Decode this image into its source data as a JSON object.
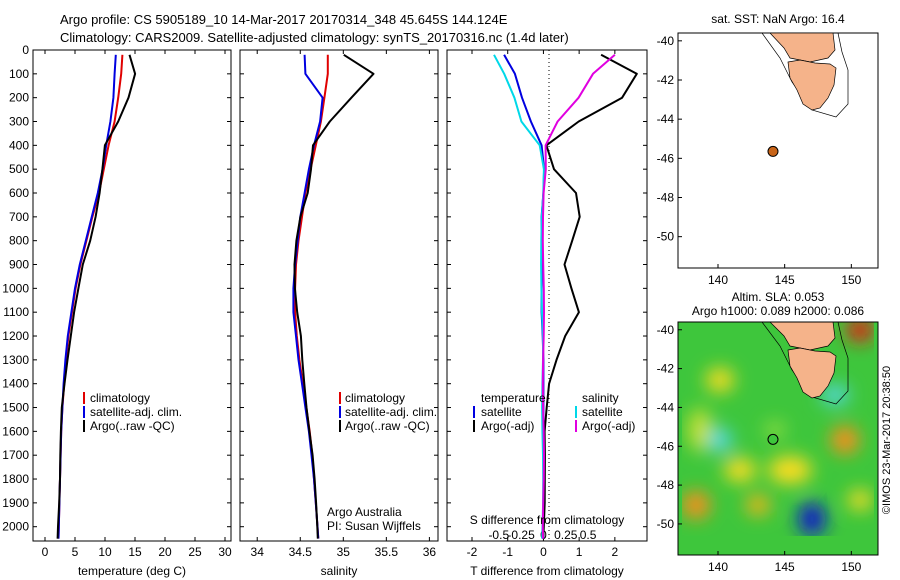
{
  "header": {
    "line1": "Argo profile: CS 5905189_10 14-Mar-2017 20170314_348 45.645S 144.124E",
    "line2": "Climatology: CARS2009. Satellite-adjusted climatology: synTS_20170316.nc (1.4d later)"
  },
  "colors": {
    "climatology": "#e00000",
    "satellite": "#0000e0",
    "argo": "#000000",
    "sat_salinity": "#00d8e8",
    "argo_salinity": "#e000e0",
    "land": "#f5b38a"
  },
  "depth_ticks": [
    "0",
    "100",
    "200",
    "300",
    "400",
    "500",
    "600",
    "700",
    "800",
    "900",
    "1000",
    "1100",
    "1200",
    "1300",
    "1400",
    "1500",
    "1600",
    "1700",
    "1800",
    "1900",
    "2000"
  ],
  "temp_panel": {
    "xlabel": "temperature (deg C)",
    "xticks": [
      "0",
      "5",
      "10",
      "15",
      "20",
      "25",
      "30"
    ],
    "legend": [
      "climatology",
      "satellite-adj. clim.",
      "Argo(..raw -QC)"
    ]
  },
  "sal_panel": {
    "xlabel": "salinity",
    "xticks": [
      "34",
      "34.5",
      "35",
      "35.5",
      "36"
    ],
    "legend": [
      "climatology",
      "satellite-adj. clim.",
      "Argo(..raw -QC)"
    ],
    "credit1": "Argo Australia",
    "credit2": "PI: Susan Wijffels"
  },
  "diff_panel": {
    "xlabel": "T difference from climatology",
    "top_xlabel": "S difference from climatology",
    "xticks": [
      "-2",
      "-1",
      "0",
      "1",
      "2"
    ],
    "sticks": [
      "-0.5",
      "-0.25",
      "0",
      "0.25",
      "0.5"
    ],
    "legend_head_t": "temperature",
    "legend_head_s": "salinity",
    "legend_t": [
      "satellite",
      "Argo(-adj)"
    ],
    "legend_s": [
      "satellite",
      "Argo(-adj)"
    ]
  },
  "map_top": {
    "title": "sat. SST: NaN Argo: 16.4",
    "yticks": [
      "-40",
      "-42",
      "-44",
      "-46",
      "-48",
      "-50"
    ],
    "xticks": [
      "140",
      "145",
      "150"
    ]
  },
  "map_bottom": {
    "title1": "Altim. SLA: 0.053",
    "title2": "Argo h1000: 0.089 h2000: 0.086",
    "yticks": [
      "-40",
      "-42",
      "-44",
      "-46",
      "-48",
      "-50"
    ],
    "xticks": [
      "140",
      "145",
      "150"
    ],
    "stamp": "©IMOS 23-Mar-2017 20:38:50"
  },
  "chart_data": [
    {
      "type": "line",
      "xlabel": "temperature (deg C)",
      "ylabel": "",
      "xlim": [
        -2,
        31
      ],
      "ylim": [
        2060,
        0
      ],
      "series": [
        {
          "name": "climatology",
          "x": [
            12.9,
            12.7,
            12.2,
            11.6,
            10.6,
            9.8,
            9.0,
            7.9,
            6.9,
            5.9,
            5.1,
            4.5,
            3.9,
            3.5,
            3.2,
            2.9,
            2.7,
            2.6,
            2.5,
            2.4,
            2.3,
            2.25
          ],
          "y": [
            20,
            100,
            200,
            300,
            400,
            500,
            600,
            700,
            800,
            900,
            1000,
            1100,
            1200,
            1300,
            1400,
            1500,
            1600,
            1700,
            1800,
            1900,
            2000,
            2050
          ]
        },
        {
          "name": "satellite-adj. clim.",
          "x": [
            11.8,
            11.6,
            11.4,
            10.9,
            10.2,
            9.6,
            8.8,
            7.8,
            6.8,
            5.8,
            5.0,
            4.4,
            3.8,
            3.4,
            3.1,
            2.9,
            2.7,
            2.6,
            2.5,
            2.4,
            2.3,
            2.25
          ],
          "y": [
            20,
            100,
            200,
            300,
            400,
            500,
            600,
            700,
            800,
            900,
            1000,
            1100,
            1200,
            1300,
            1400,
            1500,
            1600,
            1700,
            1800,
            1900,
            2000,
            2050
          ]
        },
        {
          "name": "Argo(..raw -QC)",
          "x": [
            14.0,
            15.0,
            14.0,
            12.3,
            10.0,
            9.5,
            9.0,
            8.4,
            7.6,
            6.4,
            5.6,
            4.8,
            4.2,
            3.7,
            3.3,
            2.9,
            2.7,
            2.5,
            2.4,
            2.3,
            2.2,
            2.2
          ],
          "y": [
            20,
            100,
            200,
            300,
            400,
            500,
            600,
            700,
            800,
            900,
            1000,
            1100,
            1200,
            1300,
            1400,
            1500,
            1600,
            1700,
            1800,
            1900,
            2000,
            2050
          ]
        }
      ]
    },
    {
      "type": "line",
      "xlabel": "salinity",
      "ylabel": "",
      "xlim": [
        33.8,
        36.1
      ],
      "ylim": [
        2060,
        0
      ],
      "series": [
        {
          "name": "climatology",
          "x": [
            34.82,
            34.82,
            34.78,
            34.74,
            34.68,
            34.62,
            34.56,
            34.52,
            34.48,
            34.45,
            34.44,
            34.44,
            34.46,
            34.49,
            34.53,
            34.57,
            34.61,
            34.64,
            34.66,
            34.68,
            34.7,
            34.71
          ],
          "y": [
            20,
            100,
            200,
            300,
            400,
            500,
            600,
            700,
            800,
            900,
            1000,
            1100,
            1200,
            1300,
            1400,
            1500,
            1600,
            1700,
            1800,
            1900,
            2000,
            2050
          ]
        },
        {
          "name": "satellite-adj. clim.",
          "x": [
            34.55,
            34.56,
            34.76,
            34.73,
            34.66,
            34.6,
            34.55,
            34.5,
            34.47,
            34.44,
            34.42,
            34.42,
            34.45,
            34.48,
            34.52,
            34.56,
            34.6,
            34.63,
            34.66,
            34.68,
            34.7,
            34.71
          ],
          "y": [
            20,
            100,
            200,
            300,
            400,
            500,
            600,
            700,
            800,
            900,
            1000,
            1100,
            1200,
            1300,
            1400,
            1500,
            1600,
            1700,
            1800,
            1900,
            2000,
            2050
          ]
        },
        {
          "name": "Argo(..raw -QC)",
          "x": [
            35.0,
            35.35,
            35.1,
            34.85,
            34.65,
            34.62,
            34.58,
            34.5,
            34.46,
            34.44,
            34.44,
            34.46,
            34.5,
            34.52,
            34.55,
            34.58,
            34.61,
            34.64,
            34.66,
            34.68,
            34.7,
            34.71
          ],
          "y": [
            20,
            100,
            200,
            300,
            400,
            500,
            600,
            700,
            800,
            900,
            1000,
            1100,
            1200,
            1300,
            1400,
            1500,
            1600,
            1700,
            1800,
            1900,
            2000,
            2050
          ]
        }
      ]
    },
    {
      "type": "line",
      "xlabel": "T difference from climatology",
      "ylabel": "",
      "xlim": [
        -2.7,
        2.9
      ],
      "ylim": [
        2060,
        0
      ],
      "series": [
        {
          "name": "temperature satellite",
          "x": [
            -1.1,
            -0.8,
            -0.6,
            -0.35,
            -0.05,
            0.02,
            0.0,
            -0.05,
            -0.05,
            -0.02,
            -0.05,
            -0.05,
            -0.02,
            0.0,
            0.0,
            0.0,
            0.0,
            0.0,
            0.0,
            0.0,
            0.0,
            0.0
          ],
          "y": [
            20,
            100,
            200,
            300,
            400,
            500,
            600,
            700,
            800,
            900,
            1000,
            1100,
            1200,
            1300,
            1400,
            1500,
            1600,
            1700,
            1800,
            1900,
            2000,
            2050
          ]
        },
        {
          "name": "temperature Argo(-adj)",
          "x": [
            1.6,
            2.6,
            2.2,
            1.0,
            0.1,
            0.3,
            0.9,
            1.0,
            0.8,
            0.6,
            0.8,
            1.0,
            0.6,
            0.35,
            0.15,
            0.1,
            0.05,
            0.05,
            0.03,
            0.02,
            0.0,
            0.0
          ],
          "y": [
            20,
            100,
            200,
            300,
            400,
            500,
            600,
            700,
            800,
            900,
            1000,
            1100,
            1200,
            1300,
            1400,
            1500,
            1600,
            1700,
            1800,
            1900,
            2000,
            2050
          ]
        },
        {
          "name": "salinity satellite",
          "x": [
            -1.4,
            -1.1,
            -0.8,
            -0.6,
            -0.1,
            0.0,
            -0.02,
            -0.05,
            -0.05,
            -0.05,
            -0.05,
            -0.05,
            -0.03,
            -0.02,
            -0.02,
            -0.02,
            -0.02,
            -0.02,
            -0.02,
            -0.02,
            -0.02,
            -0.02
          ],
          "y": [
            20,
            100,
            200,
            300,
            400,
            500,
            600,
            700,
            800,
            900,
            1000,
            1100,
            1200,
            1300,
            1400,
            1500,
            1600,
            1700,
            1800,
            1900,
            2000,
            2050
          ]
        },
        {
          "name": "salinity Argo(-adj)",
          "x": [
            2.0,
            1.4,
            1.0,
            0.4,
            0.05,
            0.05,
            0.0,
            0.0,
            0.0,
            0.0,
            0.0,
            0.0,
            0.0,
            0.0,
            0.0,
            0.0,
            0.0,
            0.0,
            0.0,
            0.0,
            0.0,
            0.0
          ],
          "y": [
            20,
            100,
            200,
            300,
            400,
            500,
            600,
            700,
            800,
            900,
            1000,
            1100,
            1200,
            1300,
            1400,
            1500,
            1600,
            1700,
            1800,
            1900,
            2000,
            2050
          ]
        }
      ]
    },
    {
      "type": "scatter",
      "xlim": [
        137,
        152
      ],
      "ylim": [
        -51.6,
        -39.6
      ],
      "series": [
        {
          "name": "Argo",
          "x": [
            144.124
          ],
          "y": [
            -45.645
          ]
        }
      ]
    },
    {
      "type": "heatmap",
      "xlim": [
        137,
        152
      ],
      "ylim": [
        -51.6,
        -39.6
      ],
      "series": [
        {
          "name": "Argo",
          "x": [
            144.124
          ],
          "y": [
            -45.645
          ]
        }
      ]
    }
  ]
}
